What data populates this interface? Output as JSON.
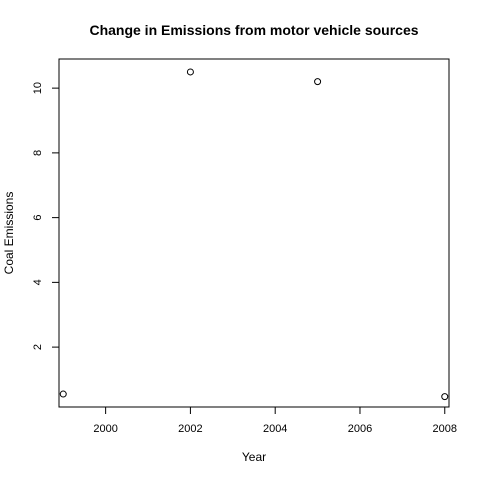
{
  "chart_data": {
    "type": "scatter",
    "title": "Change in Emissions from motor vehicle sources",
    "xlabel": "Year",
    "ylabel": "Coal Emissions",
    "x": [
      1999,
      2002,
      2005,
      2008
    ],
    "y": [
      0.55,
      10.5,
      10.2,
      0.47
    ],
    "xlim": [
      1998.9,
      2008.1
    ],
    "ylim": [
      0.15,
      10.9
    ],
    "xticks": [
      2000,
      2002,
      2004,
      2006,
      2008
    ],
    "yticks": [
      2,
      4,
      6,
      8,
      10
    ],
    "grid": false,
    "marker": "open-circle",
    "point_color": "#000000"
  }
}
